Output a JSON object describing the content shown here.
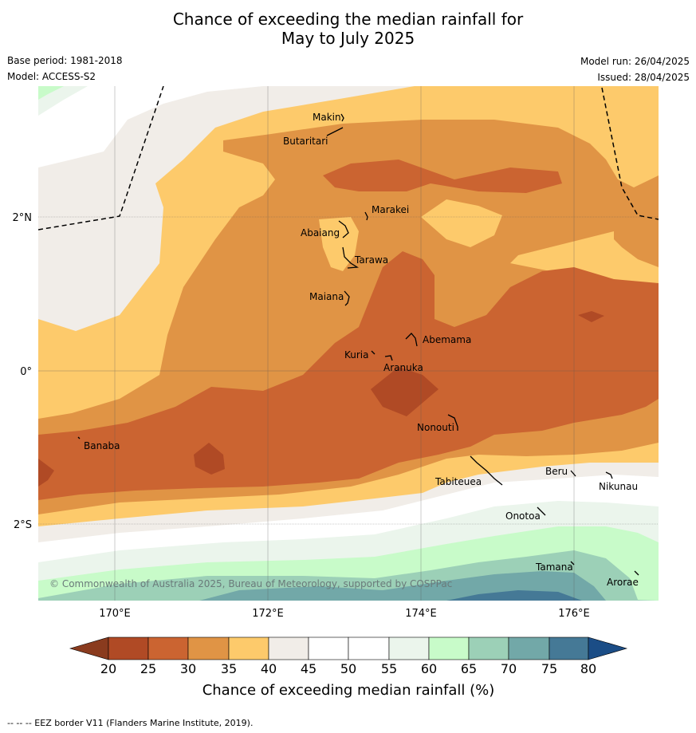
{
  "header": {
    "title_line1": "Chance of exceeding the median rainfall for",
    "title_line2": "May to July 2025",
    "base_period": "Base period: 1981-2018",
    "model": "Model: ACCESS-S2",
    "model_run": "Model run: 26/04/2025",
    "issued": "Issued: 28/04/2025"
  },
  "map": {
    "lat_labels": [
      "2°N",
      "0°",
      "2°S"
    ],
    "lon_labels": [
      "170°E",
      "172°E",
      "174°E",
      "176°E"
    ],
    "copyright": "© Commonwealth of Australia 2025, Bureau of Meteorology, supported by COSPPac",
    "places": [
      "Makin",
      "Butaritari",
      "Marakei",
      "Abaiang",
      "Tarawa",
      "Maiana",
      "Abemama",
      "Kuria",
      "Aranuka",
      "Nonouti",
      "Banaba",
      "Beru",
      "Tabiteuea",
      "Nikunau",
      "Onotoa",
      "Tamana",
      "Arorae"
    ]
  },
  "colorbar": {
    "label": "Chance of exceeding median rainfall (%)",
    "ticks": [
      "20",
      "25",
      "30",
      "35",
      "40",
      "45",
      "50",
      "55",
      "60",
      "65",
      "70",
      "75",
      "80"
    ],
    "colors": {
      "below_20": "#8a3b1e",
      "c20_25": "#b04a25",
      "c25_30": "#cb6431",
      "c30_35": "#e09445",
      "c35_40": "#fdca6b",
      "c40_45": "#f1ede8",
      "c45_55": "#ffffff",
      "c55_60": "#ebf5ec",
      "c60_65": "#c8fbc9",
      "c65_70": "#9cd0b7",
      "c70_75": "#72a8a8",
      "c75_80": "#457996",
      "above_80": "#1b4d86"
    }
  },
  "footer": {
    "eez_note": "--  --  -- EEZ border V11 (Flanders Marine Institute, 2019)."
  }
}
